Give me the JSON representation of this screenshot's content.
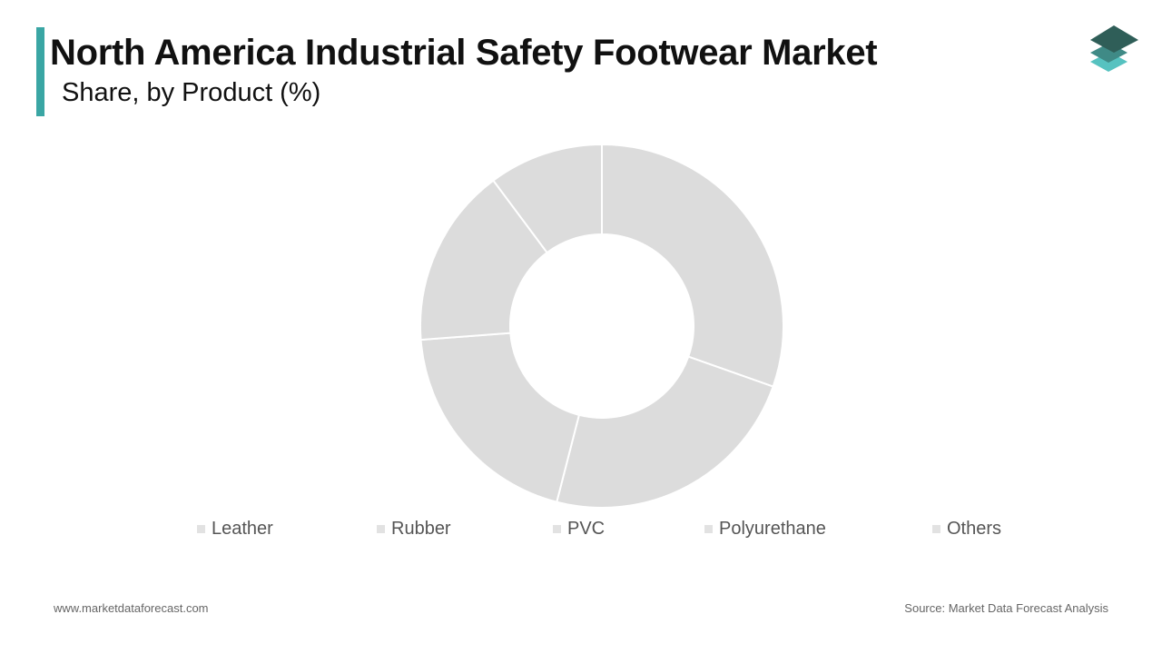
{
  "header": {
    "title": "North America Industrial Safety Footwear Market",
    "subtitle": "Share, by Product (%)"
  },
  "colors": {
    "accent": "#3aa6a4",
    "slice": "#dcdcdc",
    "slice_border": "#ffffff",
    "swatch": "#e2e2e2",
    "logo_top": "#2f5e58",
    "logo_mid": "#3f8a86",
    "logo_bottom": "#56c2c0"
  },
  "chart_data": {
    "type": "pie",
    "style": "donut",
    "categories": [
      "Leather",
      "Rubber",
      "PVC",
      "Polyurethane",
      "Others"
    ],
    "values": [
      30.4,
      23.6,
      19.8,
      16.0,
      10.2
    ],
    "legend": [
      "Leather",
      "Rubber",
      "PVC",
      "Polyurethane",
      "Others"
    ],
    "legend_position": "bottom"
  },
  "footer": {
    "website": "www.marketdataforecast.com",
    "source": "Source: Market Data Forecast Analysis"
  }
}
